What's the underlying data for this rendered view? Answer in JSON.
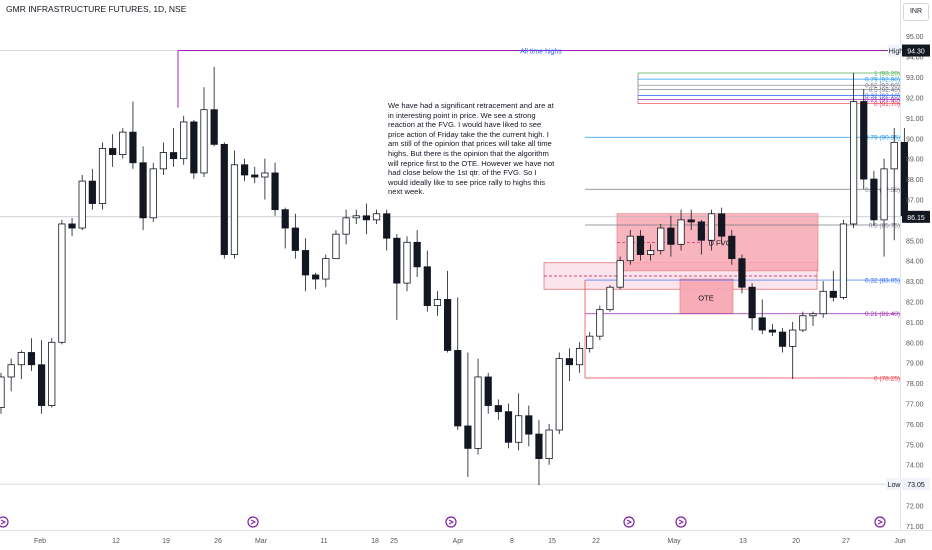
{
  "header": {
    "title": "GMR INFRASTRUCTURE FUTURES, 1D, NSE",
    "currency": "INR"
  },
  "note": "We have had a significant retracement and are at in interesting point in price. We see a strong reaction at the FVG. I would have liked to see price action of Friday take the the current high. I am still of the opinion that prices will take all time highs. But there is the opinion that the algorithm will reprice first to the OTE. However we have not had close below the 1st qtr. of the FVG. So I would ideally like to see price rally to highs this next week.",
  "chart_data": {
    "type": "candlestick",
    "y_axis": {
      "ticks": [
        "71.00",
        "72.00",
        "73.00",
        "74.00",
        "75.00",
        "76.00",
        "77.00",
        "78.00",
        "79.00",
        "80.00",
        "81.00",
        "82.00",
        "83.00",
        "84.00",
        "85.00",
        "86.00",
        "87.00",
        "88.00",
        "89.00",
        "90.00",
        "91.00",
        "92.00",
        "93.00",
        "94.00",
        "95.00"
      ],
      "range": [
        70.8,
        95.6
      ],
      "current_price_label": "86.15",
      "high_label": "High",
      "high_value": "94.30",
      "low_label": "Low",
      "low_value": "73.05"
    },
    "x_axis": {
      "ticks": [
        "Feb",
        "12",
        "19",
        "26",
        "Mar",
        "11",
        "18",
        "25",
        "Apr",
        "8",
        "15",
        "22",
        "May",
        "13",
        "20",
        "27",
        "Jun"
      ]
    },
    "horizontal_lines": [
      {
        "label": "All time highs",
        "value": 94.3,
        "color": "#9c27b0"
      }
    ],
    "fib_levels": [
      {
        "ratio": "1",
        "price": "93.20",
        "color": "#4caf50"
      },
      {
        "ratio": "0.79",
        "price": "92.90",
        "color": "#2196f3"
      },
      {
        "ratio": "0.62",
        "price": "92.60",
        "color": "#787b86"
      },
      {
        "ratio": "0.5",
        "price": "92.40",
        "color": "#787b86"
      },
      {
        "ratio": "0.32",
        "price": "92.10",
        "color": "#2962ff"
      },
      {
        "ratio": "0.21",
        "price": "91.90",
        "color": "#9c27b0"
      },
      {
        "ratio": "0",
        "price": "91.70",
        "color": "#f23645"
      },
      {
        "ratio": "0.79",
        "price": "90.05",
        "color": "#2196f3"
      },
      {
        "ratio": "0.62",
        "price": "87.50",
        "color": "#787b86"
      },
      {
        "ratio": "0.5",
        "price": "85.75",
        "color": "#787b86"
      },
      {
        "ratio": "0.32",
        "price": "83.05",
        "color": "#2962ff"
      },
      {
        "ratio": "0.21",
        "price": "81.40",
        "color": "#9c27b0"
      },
      {
        "ratio": "0",
        "price": "78.25",
        "color": "#f23645"
      }
    ],
    "zones": [
      {
        "label": "D FVG",
        "color": "#f7a8b3"
      },
      {
        "label": "OTE",
        "color": "#f7a8b3"
      },
      {
        "label": "",
        "color": "#fce4ec"
      }
    ],
    "candles": [
      [
        76.8,
        78.5,
        76.5,
        78.3
      ],
      [
        78.3,
        79.2,
        77.6,
        78.9
      ],
      [
        78.9,
        79.6,
        78.2,
        79.5
      ],
      [
        79.5,
        80.2,
        78.6,
        78.9
      ],
      [
        78.9,
        80.1,
        76.5,
        76.9
      ],
      [
        76.9,
        80.2,
        76.8,
        80.0
      ],
      [
        80.0,
        86.0,
        79.9,
        85.8
      ],
      [
        85.8,
        86.1,
        85.2,
        85.6
      ],
      [
        85.6,
        88.2,
        85.5,
        87.9
      ],
      [
        87.9,
        88.5,
        86.5,
        86.8
      ],
      [
        86.8,
        89.8,
        86.5,
        89.5
      ],
      [
        89.5,
        90.2,
        88.6,
        89.2
      ],
      [
        89.2,
        90.5,
        89.0,
        90.3
      ],
      [
        90.3,
        91.8,
        88.5,
        88.8
      ],
      [
        88.8,
        89.6,
        85.5,
        86.1
      ],
      [
        86.1,
        88.8,
        85.9,
        88.5
      ],
      [
        88.5,
        89.8,
        88.2,
        89.3
      ],
      [
        89.3,
        90.5,
        88.6,
        89.0
      ],
      [
        89.0,
        91.1,
        88.7,
        90.8
      ],
      [
        90.8,
        90.9,
        88.0,
        88.3
      ],
      [
        88.3,
        92.5,
        88.1,
        91.4
      ],
      [
        91.4,
        93.5,
        89.6,
        89.7
      ],
      [
        89.7,
        89.8,
        84.1,
        84.3
      ],
      [
        84.3,
        89.4,
        84.1,
        88.7
      ],
      [
        88.7,
        89.0,
        87.9,
        88.2
      ],
      [
        88.2,
        88.6,
        87.8,
        88.1
      ],
      [
        88.1,
        89.0,
        87.0,
        88.3
      ],
      [
        88.3,
        88.8,
        86.2,
        86.5
      ],
      [
        86.5,
        86.6,
        84.6,
        85.6
      ],
      [
        85.6,
        86.3,
        84.1,
        84.5
      ],
      [
        84.5,
        85.1,
        82.5,
        83.3
      ],
      [
        83.3,
        83.4,
        82.6,
        83.1
      ],
      [
        83.1,
        84.3,
        82.7,
        84.1
      ],
      [
        84.1,
        85.5,
        84.1,
        85.3
      ],
      [
        85.3,
        86.5,
        84.8,
        86.1
      ],
      [
        86.1,
        86.5,
        85.8,
        86.2
      ],
      [
        86.2,
        86.8,
        85.3,
        86.0
      ],
      [
        86.0,
        86.5,
        85.8,
        86.3
      ],
      [
        86.3,
        86.5,
        84.5,
        85.1
      ],
      [
        85.1,
        85.3,
        81.1,
        82.9
      ],
      [
        82.9,
        85.2,
        82.5,
        84.9
      ],
      [
        84.9,
        85.5,
        83.2,
        83.7
      ],
      [
        83.7,
        84.5,
        81.5,
        81.8
      ],
      [
        81.8,
        82.5,
        81.3,
        82.1
      ],
      [
        82.1,
        83.5,
        79.5,
        79.6
      ],
      [
        79.6,
        82.2,
        75.7,
        75.9
      ],
      [
        75.9,
        79.5,
        73.4,
        74.8
      ],
      [
        74.8,
        79.2,
        74.5,
        78.3
      ],
      [
        78.3,
        78.5,
        76.5,
        76.9
      ],
      [
        76.9,
        77.2,
        76.2,
        76.6
      ],
      [
        76.6,
        77.0,
        74.8,
        75.1
      ],
      [
        75.1,
        77.5,
        74.7,
        76.4
      ],
      [
        76.4,
        76.9,
        74.9,
        75.5
      ],
      [
        75.5,
        76.2,
        73.0,
        74.3
      ],
      [
        74.3,
        76.0,
        74.0,
        75.7
      ],
      [
        75.7,
        79.5,
        75.5,
        79.2
      ],
      [
        79.2,
        79.7,
        78.1,
        78.9
      ],
      [
        78.9,
        80.0,
        78.5,
        79.7
      ],
      [
        79.7,
        80.5,
        79.5,
        80.3
      ],
      [
        80.3,
        81.8,
        80.1,
        81.6
      ],
      [
        81.6,
        82.8,
        81.5,
        82.7
      ],
      [
        82.7,
        84.2,
        82.6,
        84.0
      ],
      [
        84.0,
        85.5,
        83.8,
        85.2
      ],
      [
        85.2,
        85.5,
        84.0,
        84.3
      ],
      [
        84.3,
        84.8,
        84.0,
        84.5
      ],
      [
        84.5,
        85.8,
        84.3,
        85.6
      ],
      [
        85.6,
        86.2,
        84.2,
        84.8
      ],
      [
        84.8,
        86.5,
        84.5,
        86.0
      ],
      [
        86.0,
        86.5,
        85.5,
        85.9
      ],
      [
        85.9,
        86.0,
        84.3,
        85.0
      ],
      [
        85.0,
        86.5,
        84.5,
        86.3
      ],
      [
        86.3,
        86.6,
        84.8,
        85.2
      ],
      [
        85.2,
        85.5,
        83.8,
        84.1
      ],
      [
        84.1,
        84.3,
        82.4,
        82.7
      ],
      [
        82.7,
        82.9,
        80.6,
        81.2
      ],
      [
        81.2,
        82.1,
        80.4,
        80.6
      ],
      [
        80.6,
        80.9,
        80.3,
        80.5
      ],
      [
        80.5,
        80.7,
        79.5,
        79.8
      ],
      [
        79.8,
        81.0,
        78.2,
        80.6
      ],
      [
        80.6,
        81.5,
        80.5,
        81.3
      ],
      [
        81.3,
        81.5,
        80.8,
        81.4
      ],
      [
        81.4,
        83.0,
        81.2,
        82.5
      ],
      [
        82.5,
        83.5,
        82.0,
        82.2
      ],
      [
        82.2,
        86.0,
        82.1,
        85.8
      ],
      [
        85.8,
        93.2,
        85.6,
        91.8
      ],
      [
        91.8,
        92.4,
        87.5,
        88.0
      ],
      [
        88.0,
        88.4,
        85.7,
        86.0
      ],
      [
        86.0,
        89.0,
        84.2,
        88.5
      ],
      [
        88.5,
        90.5,
        85.0,
        89.8
      ],
      [
        89.8,
        90.5,
        85.9,
        86.2
      ]
    ]
  }
}
